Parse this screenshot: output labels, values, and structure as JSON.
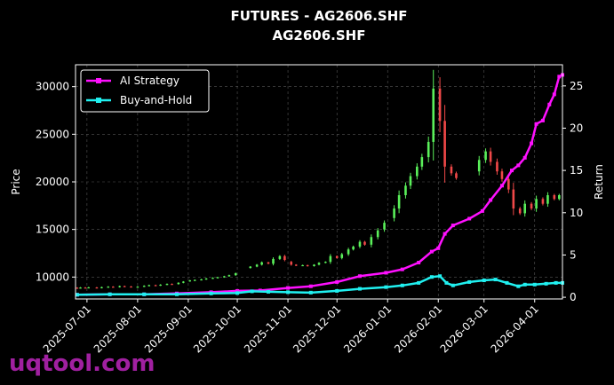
{
  "watermark": "uqtool.com",
  "chart_data": {
    "type": "line",
    "title": "FUTURES - AG2606.SHF",
    "subtitle": "AG2606.SHF",
    "ylabel": "Price",
    "y2label": "Return",
    "x_ticks": [
      "2025-07-01",
      "2025-08-01",
      "2025-09-01",
      "2025-10-01",
      "2025-11-01",
      "2025-12-01",
      "2026-01-01",
      "2026-02-01",
      "2026-03-01",
      "2026-04-01"
    ],
    "x_range": [
      "2025-06-24",
      "2026-04-18"
    ],
    "ylim": [
      7700,
      32300
    ],
    "y_ticks": [
      10000,
      15000,
      20000,
      25000,
      30000
    ],
    "y2lim": [
      -0.2,
      27.5
    ],
    "y2_ticks": [
      0,
      5,
      10,
      15,
      20,
      25
    ],
    "grid": true,
    "legend_position": "upper-left",
    "colors": {
      "up": "#5af05a",
      "down": "#f04848",
      "ai": "#ff10ff",
      "bh": "#20f0f0"
    },
    "candles": [
      [
        "2025-06-25",
        8880,
        8850
      ],
      [
        "2025-06-27",
        8850,
        8900
      ],
      [
        "2025-06-30",
        8900,
        8870
      ],
      [
        "2025-07-02",
        8870,
        8920
      ],
      [
        "2025-07-07",
        8910,
        8860
      ],
      [
        "2025-07-10",
        8860,
        8940
      ],
      [
        "2025-07-14",
        8940,
        8990
      ],
      [
        "2025-07-17",
        8990,
        8950
      ],
      [
        "2025-07-21",
        8950,
        9050
      ],
      [
        "2025-07-24",
        9050,
        9020
      ],
      [
        "2025-07-28",
        9010,
        8960
      ],
      [
        "2025-08-01",
        8960,
        8990
      ],
      [
        "2025-08-05",
        9000,
        9080
      ],
      [
        "2025-08-08",
        9080,
        9150
      ],
      [
        "2025-08-12",
        9150,
        9120
      ],
      [
        "2025-08-15",
        9120,
        9200
      ],
      [
        "2025-08-19",
        9200,
        9280
      ],
      [
        "2025-08-22",
        9280,
        9250
      ],
      [
        "2025-08-26",
        9260,
        9400
      ],
      [
        "2025-08-29",
        9400,
        9520
      ],
      [
        "2025-09-02",
        9560,
        9650
      ],
      [
        "2025-09-05",
        9650,
        9700
      ],
      [
        "2025-09-09",
        9700,
        9760
      ],
      [
        "2025-09-12",
        9760,
        9850
      ],
      [
        "2025-09-16",
        9850,
        9920
      ],
      [
        "2025-09-19",
        9920,
        9980
      ],
      [
        "2025-09-23",
        9980,
        10080
      ],
      [
        "2025-09-26",
        10080,
        10200
      ],
      [
        "2025-09-30",
        10200,
        10400
      ],
      [
        "2025-10-09",
        10950,
        11100
      ],
      [
        "2025-10-13",
        11100,
        11300
      ],
      [
        "2025-10-16",
        11300,
        11550
      ],
      [
        "2025-10-20",
        11550,
        11400
      ],
      [
        "2025-10-23",
        11400,
        11900
      ],
      [
        "2025-10-27",
        11900,
        12200
      ],
      [
        "2025-10-30",
        12200,
        11800
      ],
      [
        "2025-11-03",
        11600,
        11300
      ],
      [
        "2025-11-06",
        11300,
        11200
      ],
      [
        "2025-11-10",
        11200,
        11250
      ],
      [
        "2025-11-13",
        11250,
        11150
      ],
      [
        "2025-11-17",
        11150,
        11300
      ],
      [
        "2025-11-20",
        11300,
        11500
      ],
      [
        "2025-11-24",
        11500,
        11600
      ],
      [
        "2025-11-27",
        11600,
        12200
      ],
      [
        "2025-12-01",
        12200,
        12000
      ],
      [
        "2025-12-04",
        12000,
        12400
      ],
      [
        "2025-12-08",
        12400,
        12900
      ],
      [
        "2025-12-11",
        12900,
        13200
      ],
      [
        "2025-12-15",
        13200,
        13700
      ],
      [
        "2025-12-18",
        13700,
        13400
      ],
      [
        "2025-12-22",
        13400,
        14200
      ],
      [
        "2025-12-26",
        14200,
        14900
      ],
      [
        "2025-12-30",
        15000,
        15700
      ],
      [
        "2026-01-05",
        16200,
        17200
      ],
      [
        "2026-01-08",
        17200,
        18600
      ],
      [
        "2026-01-12",
        18600,
        19600
      ],
      [
        "2026-01-15",
        19600,
        20600
      ],
      [
        "2026-01-19",
        20600,
        21600
      ],
      [
        "2026-01-22",
        21600,
        22600
      ],
      [
        "2026-01-26",
        22600,
        24200
      ],
      [
        "2026-01-29",
        24200,
        29800
      ],
      [
        "2026-02-02",
        29800,
        26400
      ],
      [
        "2026-02-05",
        26400,
        21600
      ],
      [
        "2026-02-09",
        21600,
        20900
      ],
      [
        "2026-02-12",
        20900,
        20400
      ],
      [
        "2026-02-26",
        21100,
        22300
      ],
      [
        "2026-03-02",
        22300,
        23200
      ],
      [
        "2026-03-05",
        23200,
        22100
      ],
      [
        "2026-03-09",
        22100,
        21100
      ],
      [
        "2026-03-12",
        21100,
        20300
      ],
      [
        "2026-03-16",
        20300,
        19200
      ],
      [
        "2026-03-19",
        19200,
        17200
      ],
      [
        "2026-03-23",
        17200,
        16700
      ],
      [
        "2026-03-26",
        16700,
        17700
      ],
      [
        "2026-03-30",
        17700,
        17200
      ],
      [
        "2026-04-02",
        17200,
        18200
      ],
      [
        "2026-04-06",
        18200,
        17700
      ],
      [
        "2026-04-09",
        17700,
        18600
      ],
      [
        "2026-04-13",
        18600,
        18200
      ],
      [
        "2026-04-16",
        18200,
        18600
      ]
    ],
    "series": [
      {
        "name": "AI Strategy",
        "color": "#ff10ff",
        "points": [
          [
            "2025-06-25",
            0.3
          ],
          [
            "2025-07-15",
            0.35
          ],
          [
            "2025-08-05",
            0.35
          ],
          [
            "2025-08-25",
            0.45
          ],
          [
            "2025-09-15",
            0.6
          ],
          [
            "2025-10-01",
            0.75
          ],
          [
            "2025-10-15",
            0.8
          ],
          [
            "2025-11-01",
            1.1
          ],
          [
            "2025-11-15",
            1.3
          ],
          [
            "2025-12-01",
            1.8
          ],
          [
            "2025-12-15",
            2.5
          ],
          [
            "2025-12-31",
            2.9
          ],
          [
            "2026-01-10",
            3.3
          ],
          [
            "2026-01-20",
            4.1
          ],
          [
            "2026-01-28",
            5.4
          ],
          [
            "2026-02-01",
            5.8
          ],
          [
            "2026-02-05",
            7.5
          ],
          [
            "2026-02-10",
            8.5
          ],
          [
            "2026-02-20",
            9.3
          ],
          [
            "2026-02-28",
            10.2
          ],
          [
            "2026-03-05",
            11.5
          ],
          [
            "2026-03-12",
            13.2
          ],
          [
            "2026-03-18",
            15.0
          ],
          [
            "2026-03-22",
            15.6
          ],
          [
            "2026-03-26",
            16.5
          ],
          [
            "2026-03-30",
            18.2
          ],
          [
            "2026-04-02",
            20.5
          ],
          [
            "2026-04-06",
            20.9
          ],
          [
            "2026-04-10",
            22.8
          ],
          [
            "2026-04-13",
            24.0
          ],
          [
            "2026-04-16",
            26.1
          ],
          [
            "2026-04-18",
            26.3
          ]
        ]
      },
      {
        "name": "Buy-and-Hold",
        "color": "#20f0f0",
        "points": [
          [
            "2025-06-25",
            0.3
          ],
          [
            "2025-07-15",
            0.35
          ],
          [
            "2025-08-05",
            0.35
          ],
          [
            "2025-08-25",
            0.35
          ],
          [
            "2025-09-15",
            0.45
          ],
          [
            "2025-10-01",
            0.5
          ],
          [
            "2025-10-10",
            0.7
          ],
          [
            "2025-10-20",
            0.65
          ],
          [
            "2025-11-01",
            0.6
          ],
          [
            "2025-11-15",
            0.55
          ],
          [
            "2025-12-01",
            0.75
          ],
          [
            "2025-12-15",
            1.0
          ],
          [
            "2025-12-31",
            1.2
          ],
          [
            "2026-01-10",
            1.4
          ],
          [
            "2026-01-20",
            1.7
          ],
          [
            "2026-01-28",
            2.4
          ],
          [
            "2026-02-02",
            2.5
          ],
          [
            "2026-02-06",
            1.7
          ],
          [
            "2026-02-10",
            1.4
          ],
          [
            "2026-02-20",
            1.8
          ],
          [
            "2026-03-01",
            2.0
          ],
          [
            "2026-03-08",
            2.1
          ],
          [
            "2026-03-15",
            1.7
          ],
          [
            "2026-03-22",
            1.3
          ],
          [
            "2026-03-26",
            1.5
          ],
          [
            "2026-04-01",
            1.5
          ],
          [
            "2026-04-08",
            1.6
          ],
          [
            "2026-04-14",
            1.7
          ],
          [
            "2026-04-18",
            1.7
          ]
        ]
      }
    ]
  }
}
